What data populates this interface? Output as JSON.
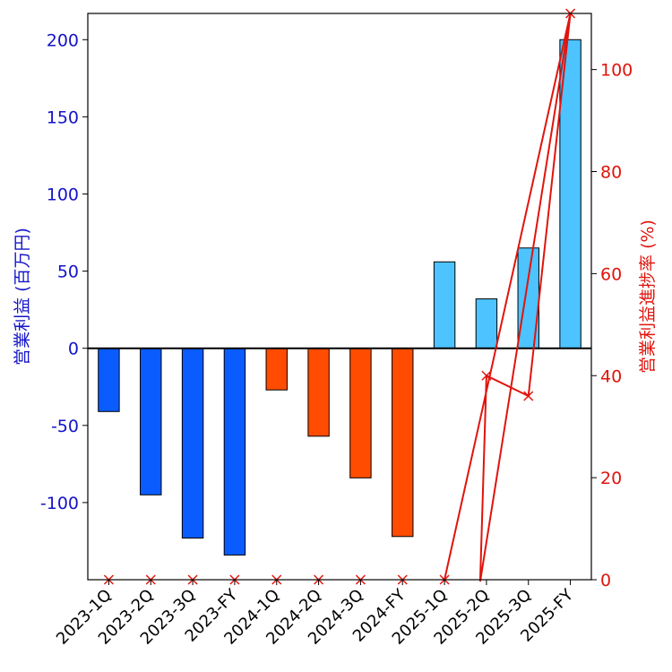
{
  "chart_data": {
    "type": "bar",
    "categories": [
      "2023-1Q",
      "2023-2Q",
      "2023-3Q",
      "2023-FY",
      "2024-1Q",
      "2024-2Q",
      "2024-3Q",
      "2024-FY",
      "2025-1Q",
      "2025-2Q",
      "2025-3Q",
      "2025-FY"
    ],
    "series": [
      {
        "name": "営業利益",
        "type": "bar",
        "axis": "left",
        "values": [
          -41,
          -95,
          -123,
          -134,
          -27,
          -57,
          -84,
          -122,
          56,
          32,
          65,
          200
        ],
        "colors": [
          "#0a5cff",
          "#0a5cff",
          "#0a5cff",
          "#0a5cff",
          "#ff4c00",
          "#ff4c00",
          "#ff4c00",
          "#ff4c00",
          "#4dc3ff",
          "#4dc3ff",
          "#4dc3ff",
          "#4dc3ff"
        ]
      },
      {
        "name": "営業利益進捗率",
        "type": "line",
        "axis": "right",
        "color": "#e0140c",
        "values": [
          0,
          0,
          0,
          0,
          0,
          0,
          0,
          0,
          0,
          40,
          36,
          111
        ],
        "rendered_values": [
          0,
          0,
          0,
          0,
          0,
          0,
          0,
          0,
          0,
          40,
          36,
          111
        ]
      }
    ],
    "ylabel_left": "営業利益 (百万円)",
    "ylabel_right": "営業利益進捗率 (%)",
    "ylim_left": [
      -150,
      217
    ],
    "ylim_right": [
      0,
      111
    ],
    "yticks_left": [
      {
        "value": 200,
        "label": "200"
      },
      {
        "value": 150,
        "label": "150"
      },
      {
        "value": 100,
        "label": "100"
      },
      {
        "value": 50,
        "label": "50"
      },
      {
        "value": 0,
        "label": "0"
      },
      {
        "value": -50,
        "label": "-50"
      },
      {
        "value": -100,
        "label": "-100"
      }
    ],
    "yticks_right": [
      {
        "value": 100,
        "label": "100"
      },
      {
        "value": 80,
        "label": "80"
      },
      {
        "value": 60,
        "label": "60"
      },
      {
        "value": 40,
        "label": "40"
      },
      {
        "value": 20,
        "label": "20"
      },
      {
        "value": 0,
        "label": "0"
      }
    ],
    "colors": {
      "left_axis": "#1414c8",
      "right_axis": "#e0140c",
      "zero_line": "#000000",
      "bar_edge": "#000000"
    }
  }
}
